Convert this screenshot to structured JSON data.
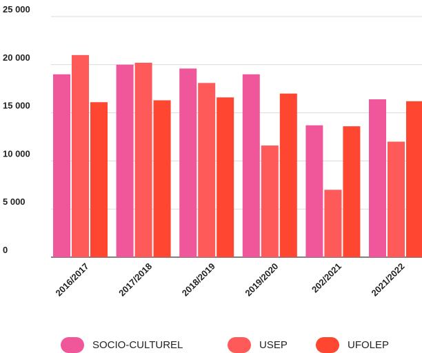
{
  "chart_data": {
    "type": "bar",
    "categories": [
      "2016/2017",
      "2017/2018",
      "2018/2019",
      "2019/2020",
      "202/2021",
      "2021/2022"
    ],
    "series": [
      {
        "name": "SOCIO-CULTUREL",
        "color": "#f0579a",
        "values": [
          19000,
          20000,
          19600,
          19000,
          13700,
          16400
        ]
      },
      {
        "name": "USEP",
        "color": "#fe5a5a",
        "values": [
          21000,
          20200,
          18100,
          11600,
          7000,
          12000
        ]
      },
      {
        "name": "UFOLEP",
        "color": "#fe4631",
        "values": [
          16100,
          16300,
          16600,
          17000,
          13600,
          16200
        ]
      }
    ],
    "ylim": [
      0,
      25000
    ],
    "yticks": [
      0,
      5000,
      10000,
      15000,
      20000,
      25000
    ],
    "ytick_labels": [
      "0",
      "5 000",
      "10 000",
      "15 000",
      "20 000",
      "25 000"
    ],
    "grid": true,
    "legend_position": "bottom"
  }
}
